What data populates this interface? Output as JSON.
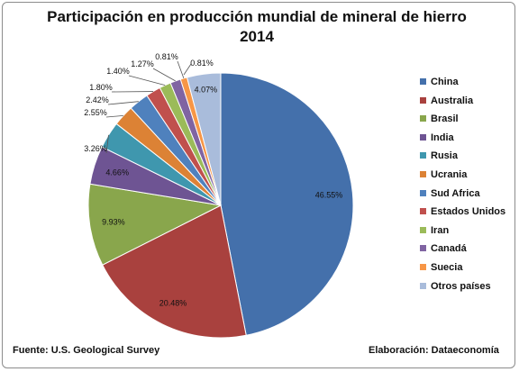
{
  "chart_data": {
    "type": "pie",
    "title": "Participación en producción mundial de mineral de hierro",
    "subtitle": "2014",
    "slices": [
      {
        "label": "China",
        "value": 46.55,
        "display": "46.55%",
        "color": "#4470ab"
      },
      {
        "label": "Australia",
        "value": 20.48,
        "display": "20.48%",
        "color": "#a9413e"
      },
      {
        "label": "Brasil",
        "value": 9.93,
        "display": "9.93%",
        "color": "#89a64c"
      },
      {
        "label": "India",
        "value": 4.66,
        "display": "4.66%",
        "color": "#6e5493"
      },
      {
        "label": "Rusia",
        "value": 3.26,
        "display": "3.26%",
        "color": "#3f97ae"
      },
      {
        "label": "Ucrania",
        "value": 2.55,
        "display": "2.55%",
        "color": "#dc8235"
      },
      {
        "label": "Sud Africa",
        "value": 2.42,
        "display": "2.42%",
        "color": "#4f81bd"
      },
      {
        "label": "Estados Unidos",
        "value": 1.8,
        "display": "1.80%",
        "color": "#c0504d"
      },
      {
        "label": "Iran",
        "value": 1.4,
        "display": "1.40%",
        "color": "#9bbb59"
      },
      {
        "label": "Canadá",
        "value": 1.27,
        "display": "1.27%",
        "color": "#8064a2"
      },
      {
        "label": "Suecia",
        "value": 0.81,
        "display": "0.81%",
        "color": "#f79646"
      },
      {
        "label": "Otros países",
        "value": 4.07,
        "display": "4.07%",
        "color": "#a9bcdb"
      }
    ],
    "extra_labels": [
      "0.81%"
    ],
    "legend_position": "right"
  },
  "footer": {
    "source": "Fuente: U.S. Geological Survey",
    "credit": "Elaboración: Dataeconomía"
  }
}
